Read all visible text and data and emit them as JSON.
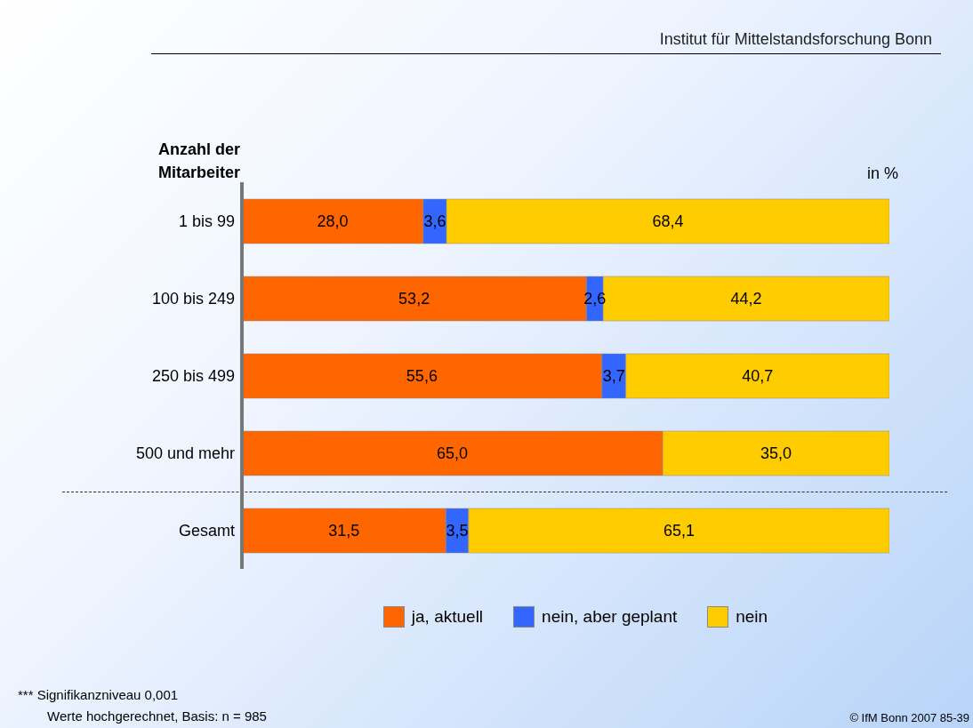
{
  "chart_data": {
    "type": "bar",
    "orientation": "horizontal",
    "stacked": true,
    "title": "Institut für Mittelstandsforschung Bonn",
    "ylabel": "Anzahl der Mitarbeiter",
    "categories": [
      "1 bis 99",
      "100 bis 249",
      "250 bis 499",
      "500 und mehr",
      "Gesamt"
    ],
    "series": [
      {
        "name": "ja, aktuell",
        "color": "#ff6600",
        "values": [
          28.0,
          53.2,
          55.6,
          65.0,
          31.5
        ],
        "value_labels": [
          "28,0",
          "53,2",
          "55,6",
          "65,0",
          "31,5"
        ]
      },
      {
        "name": "nein, aber geplant",
        "color": "#3366ff",
        "values": [
          3.6,
          2.6,
          3.7,
          null,
          3.5
        ],
        "value_labels": [
          "3,6",
          "2,6",
          "3,7",
          null,
          "3,5"
        ]
      },
      {
        "name": "nein",
        "color": "#ffcc00",
        "values": [
          68.4,
          44.2,
          40.7,
          35.0,
          65.1
        ],
        "value_labels": [
          "68,4",
          "44,2",
          "40,7",
          "35,0",
          "65,1"
        ]
      }
    ],
    "xlim": [
      0,
      100
    ],
    "tick_labels": "y",
    "grid": false,
    "legend": "bottom",
    "annotations": [
      "in %",
      "*** Signifikanzniveau 0,001",
      "Werte hochgerechnet, Basis: n = 985",
      "© IfM Bonn 2007  85-39"
    ]
  }
}
